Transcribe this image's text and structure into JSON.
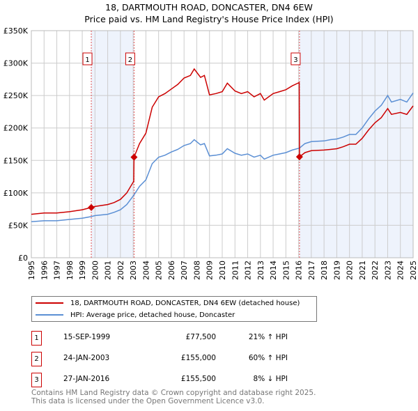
{
  "title_line1": "18, DARTMOUTH ROAD, DONCASTER, DN4 6EW",
  "title_line2": "Price paid vs. HM Land Registry's House Price Index (HPI)",
  "legend": [
    {
      "label": "18, DARTMOUTH ROAD, DONCASTER, DN4 6EW (detached house)",
      "color": "#cc0000"
    },
    {
      "label": "HPI: Average price, detached house, Doncaster",
      "color": "#5b8fd4"
    }
  ],
  "sales": [
    {
      "num": "1",
      "date": "15-SEP-1999",
      "price": "£77,500",
      "hpi": "21% ↑ HPI",
      "year": 1999.71,
      "value": 77.5
    },
    {
      "num": "2",
      "date": "24-JAN-2003",
      "price": "£155,000",
      "hpi": "60% ↑ HPI",
      "year": 2003.07,
      "value": 155
    },
    {
      "num": "3",
      "date": "27-JAN-2016",
      "price": "£155,500",
      "hpi": "8% ↓ HPI",
      "year": 2016.07,
      "value": 155.5
    }
  ],
  "footer_line1": "Contains HM Land Registry data © Crown copyright and database right 2025.",
  "footer_line2": "This data is licensed under the Open Government Licence v3.0.",
  "chart_data": {
    "type": "line",
    "xlim": [
      1995,
      2025
    ],
    "ylim": [
      0,
      350
    ],
    "ylabel_unit": "£K",
    "yticks": [
      {
        "v": 0,
        "label": "£0"
      },
      {
        "v": 50,
        "label": "£50K"
      },
      {
        "v": 100,
        "label": "£100K"
      },
      {
        "v": 150,
        "label": "£150K"
      },
      {
        "v": 200,
        "label": "£200K"
      },
      {
        "v": 250,
        "label": "£250K"
      },
      {
        "v": 300,
        "label": "£300K"
      },
      {
        "v": 350,
        "label": "£350K"
      }
    ],
    "xticks": [
      "1995",
      "1996",
      "1997",
      "1998",
      "1999",
      "2000",
      "2001",
      "2002",
      "2003",
      "2004",
      "2005",
      "2006",
      "2007",
      "2008",
      "2009",
      "2010",
      "2011",
      "2012",
      "2013",
      "2014",
      "2015",
      "2016",
      "2017",
      "2018",
      "2019",
      "2020",
      "2021",
      "2022",
      "2023",
      "2024",
      "2025"
    ],
    "shaded": [
      [
        1999.71,
        2003.07
      ],
      [
        2016.07,
        2025
      ]
    ],
    "series": [
      {
        "name": "18, DARTMOUTH ROAD, DONCASTER, DN4 6EW (detached house)",
        "color": "#cc0000",
        "x": [
          1995,
          1996,
          1997,
          1998,
          1999,
          1999.71,
          2000,
          2001,
          2001.5,
          2002,
          2002.5,
          2003.05,
          2003.07,
          2003.5,
          2004,
          2004.5,
          2005,
          2005.5,
          2006,
          2006.5,
          2007,
          2007.5,
          2007.8,
          2008.3,
          2008.6,
          2009,
          2009.5,
          2010,
          2010.4,
          2011,
          2011.5,
          2012,
          2012.5,
          2013,
          2013.3,
          2014,
          2014.5,
          2015,
          2015.5,
          2016.05,
          2016.07,
          2016.5,
          2017,
          2018,
          2018.5,
          2019,
          2019.5,
          2020,
          2020.5,
          2021,
          2021.5,
          2022,
          2022.5,
          2023,
          2023.3,
          2024,
          2024.5,
          2025
        ],
        "y": [
          67,
          69,
          69,
          71,
          74,
          77.5,
          79,
          82,
          85,
          90,
          100,
          118,
          155,
          176,
          192,
          232,
          248,
          253,
          260,
          267,
          277,
          281,
          291,
          278,
          281,
          251,
          253,
          256,
          269,
          257,
          253,
          256,
          248,
          253,
          243,
          253,
          256,
          259,
          265,
          270,
          155.5,
          162,
          165,
          166,
          167,
          168,
          171,
          175,
          175,
          184,
          197,
          208,
          216,
          230,
          221,
          224,
          221,
          234
        ]
      },
      {
        "name": "HPI: Average price, detached house, Doncaster",
        "color": "#5b8fd4",
        "x": [
          1995,
          1996,
          1997,
          1998,
          1999,
          1999.71,
          2000,
          2001,
          2001.5,
          2002,
          2002.5,
          2003.07,
          2003.5,
          2004,
          2004.5,
          2005,
          2005.5,
          2006,
          2006.5,
          2007,
          2007.5,
          2007.8,
          2008.3,
          2008.6,
          2009,
          2009.5,
          2010,
          2010.4,
          2011,
          2011.5,
          2012,
          2012.5,
          2013,
          2013.3,
          2014,
          2014.5,
          2015,
          2015.5,
          2016.07,
          2016.5,
          2017,
          2018,
          2018.5,
          2019,
          2019.5,
          2020,
          2020.5,
          2021,
          2021.5,
          2022,
          2022.5,
          2023,
          2023.3,
          2024,
          2024.5,
          2025
        ],
        "y": [
          55.6,
          57,
          57,
          59,
          61,
          63.5,
          65,
          67,
          70,
          74,
          82,
          97,
          110,
          120,
          145,
          155,
          158,
          163,
          167,
          173,
          176,
          182,
          174,
          176,
          157,
          158,
          160,
          168,
          161,
          158,
          160,
          155,
          158,
          152,
          158,
          160,
          162,
          166,
          169,
          176,
          179,
          180,
          182,
          183,
          186,
          190,
          190,
          200,
          214,
          226,
          235,
          250,
          240,
          244,
          240,
          254
        ]
      }
    ]
  }
}
